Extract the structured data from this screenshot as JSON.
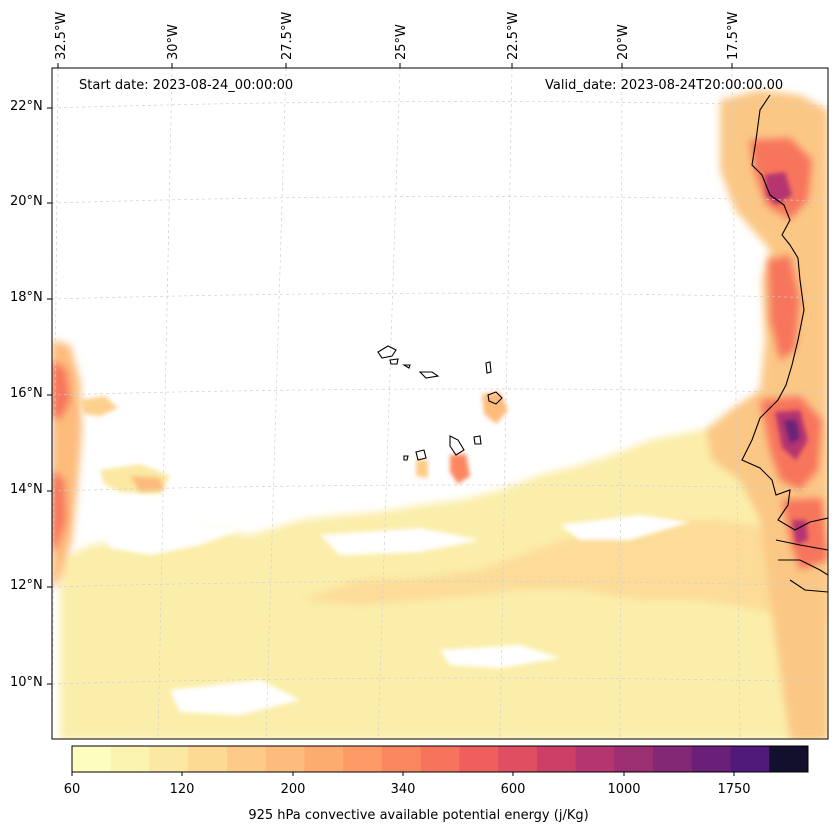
{
  "header": {
    "start_date": "Start date: 2023-08-24_00:00:00",
    "valid_date": "Valid_date: 2023-08-24T20:00:00.00"
  },
  "longitude_labels": [
    "32.5°W",
    "30°W",
    "27.5°W",
    "25°W",
    "22.5°W",
    "20°W",
    "17.5°W"
  ],
  "latitude_labels": [
    "22°N",
    "20°N",
    "18°N",
    "16°N",
    "14°N",
    "12°N",
    "10°N"
  ],
  "colorbar": {
    "title": "925 hPa convective available potential energy (j/Kg)",
    "tick_labels": [
      "60",
      "120",
      "200",
      "340",
      "600",
      "1000",
      "1750"
    ],
    "colors": [
      "#fcfdbf",
      "#fbf3b0",
      "#fbe8a2",
      "#fcda94",
      "#fdcb87",
      "#fdbc7b",
      "#fdac70",
      "#fd9a66",
      "#fb8760",
      "#f7745c",
      "#ee5f5d",
      "#e04f61",
      "#cc4068",
      "#b5366f",
      "#9c2e72",
      "#832874",
      "#6a2078",
      "#501a7a",
      "#12102d"
    ]
  },
  "map": {
    "field": "925 hPa convective available potential energy",
    "units": "j/Kg"
  }
}
